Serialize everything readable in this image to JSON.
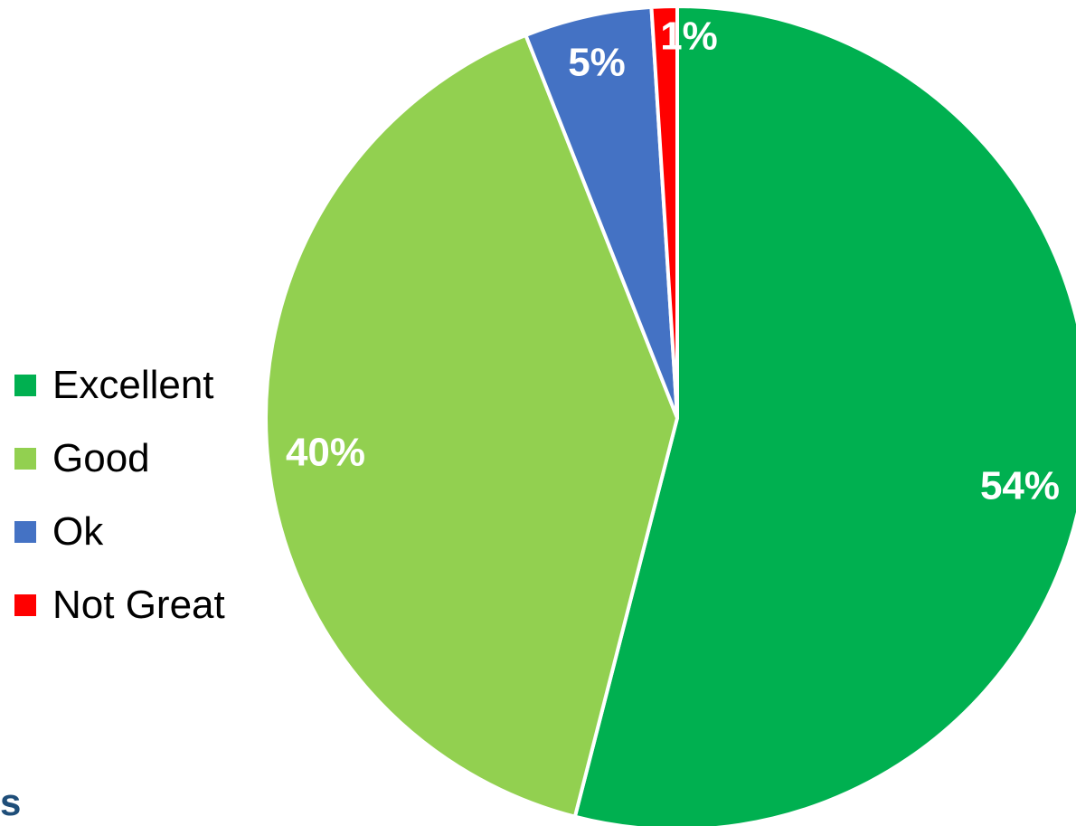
{
  "chart_data": {
    "type": "pie",
    "title": "",
    "slices": [
      {
        "name": "Excellent",
        "value": 54,
        "label": "54%",
        "color": "#00b050"
      },
      {
        "name": "Good",
        "value": 40,
        "label": "40%",
        "color": "#92d050"
      },
      {
        "name": "Ok",
        "value": 5,
        "label": "5%",
        "color": "#4472c4"
      },
      {
        "name": "Not Great",
        "value": 1,
        "label": "1%",
        "color": "#ff0000"
      }
    ],
    "start_angle": "12 o'clock",
    "direction": "clockwise",
    "legend_placement": "left",
    "label_color": "#ffffff",
    "slice_border_color": "#ffffff"
  },
  "footer": {
    "corner_text": "s"
  }
}
